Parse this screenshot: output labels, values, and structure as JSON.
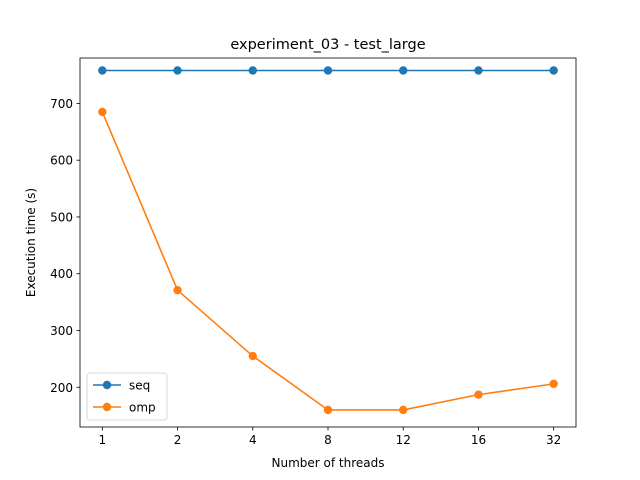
{
  "chart_data": {
    "type": "line",
    "title": "experiment_03 - test_large",
    "xlabel": "Number of threads",
    "ylabel": "Execution time (s)",
    "categories": [
      "1",
      "2",
      "4",
      "8",
      "12",
      "16",
      "32"
    ],
    "ylim": [
      130,
      780
    ],
    "yticks": [
      200,
      300,
      400,
      500,
      600,
      700
    ],
    "grid": false,
    "legend_position": "lower-left",
    "series": [
      {
        "name": "seq",
        "color": "#1f77b4",
        "values": [
          758,
          758,
          758,
          758,
          758,
          758,
          758
        ]
      },
      {
        "name": "omp",
        "color": "#ff7f0e",
        "values": [
          685,
          371,
          255,
          160,
          160,
          187,
          206
        ]
      }
    ]
  }
}
